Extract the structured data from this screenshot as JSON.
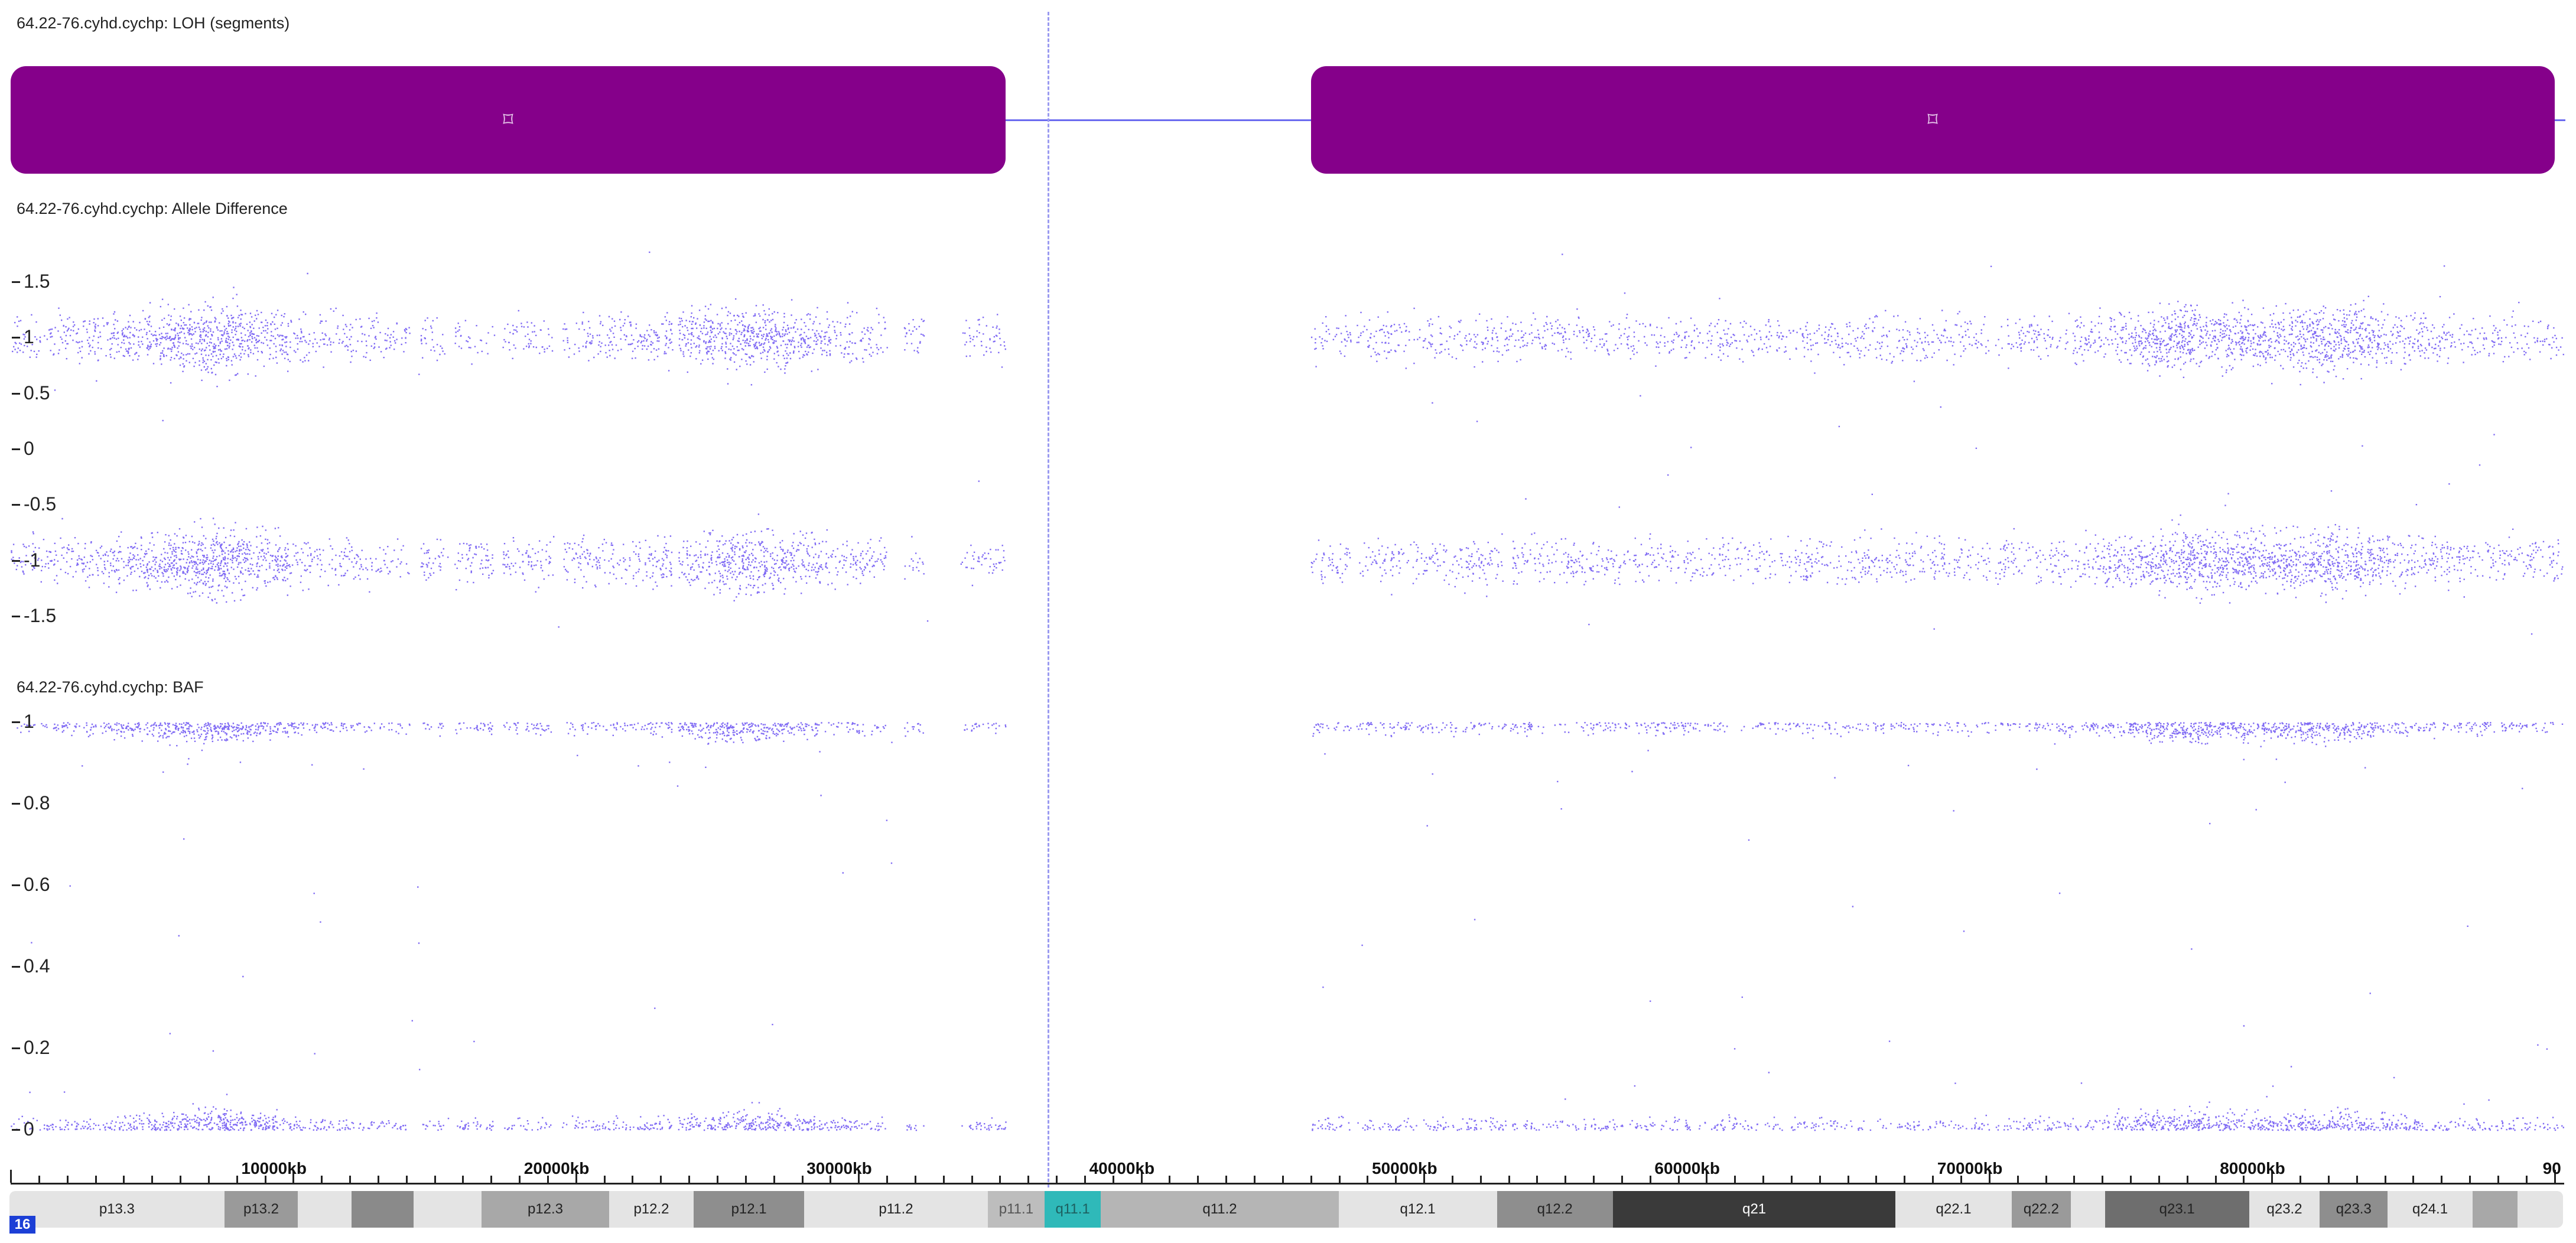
{
  "tracks": {
    "loh_label": "64.22-76.cyhd.cychp: LOH (segments)",
    "allele_label": "64.22-76.cyhd.cychp: Allele Difference",
    "baf_label": "64.22-76.cyhd.cychp: BAF"
  },
  "loh_segments": [
    {
      "start_kb": 0,
      "end_kb": 35200,
      "icon": "resize-handle-icon",
      "glyph": "⌑"
    },
    {
      "start_kb": 46000,
      "end_kb": 90000,
      "icon": "resize-handle-icon",
      "glyph": "⌑"
    }
  ],
  "cursor_kb": 36700,
  "chart_data": [
    {
      "type": "scatter",
      "title": "64.22-76.cyhd.cychp: Allele Difference",
      "ylim": [
        -1.8,
        1.8
      ],
      "y_ticks": [
        "1.5",
        "1",
        "0.5",
        "0",
        "-0.5",
        "-1",
        "-1.5"
      ],
      "x_range_kb": [
        0,
        90300
      ],
      "clusters_y": [
        1,
        -1
      ],
      "point_color": "#4a2cf0",
      "gaps_kb": [
        [
          35200,
          46000
        ]
      ]
    },
    {
      "type": "scatter",
      "title": "64.22-76.cyhd.cychp: BAF",
      "ylim": [
        0,
        1
      ],
      "y_ticks": [
        "1",
        "0.8",
        "0.6",
        "0.4",
        "0.2",
        "0"
      ],
      "x_range_kb": [
        0,
        90300
      ],
      "clusters_y": [
        1,
        0
      ],
      "point_color": "#4a2cf0",
      "gaps_kb": [
        [
          35200,
          46000
        ]
      ]
    }
  ],
  "ruler": {
    "labels": [
      "10000kb",
      "20000kb",
      "30000kb",
      "40000kb",
      "50000kb",
      "60000kb",
      "70000kb",
      "80000kb",
      "90"
    ]
  },
  "ideogram": {
    "chromosome": "16",
    "bands": [
      {
        "name": "p13.3",
        "start_kb": 0,
        "end_kb": 7600,
        "stain": "#e4e4e4",
        "text": "#222"
      },
      {
        "name": "p13.2",
        "start_kb": 7600,
        "end_kb": 10200,
        "stain": "#9a9a9a",
        "text": "#222"
      },
      {
        "name": "",
        "start_kb": 10200,
        "end_kb": 12100,
        "stain": "#e4e4e4",
        "text": "#222"
      },
      {
        "name": "",
        "start_kb": 12100,
        "end_kb": 14300,
        "stain": "#8a8a8a",
        "text": "#222"
      },
      {
        "name": "",
        "start_kb": 14300,
        "end_kb": 16700,
        "stain": "#e4e4e4",
        "text": "#222"
      },
      {
        "name": "p12.3",
        "start_kb": 16700,
        "end_kb": 21200,
        "stain": "#a8a8a8",
        "text": "#222"
      },
      {
        "name": "p12.2",
        "start_kb": 21200,
        "end_kb": 24200,
        "stain": "#e4e4e4",
        "text": "#222"
      },
      {
        "name": "p12.1",
        "start_kb": 24200,
        "end_kb": 28100,
        "stain": "#8e8e8e",
        "text": "#222"
      },
      {
        "name": "p11.2",
        "start_kb": 28100,
        "end_kb": 34600,
        "stain": "#e4e4e4",
        "text": "#222"
      },
      {
        "name": "p11.1",
        "start_kb": 34600,
        "end_kb": 36600,
        "stain": "#bdbdbd",
        "text": "#555"
      },
      {
        "name": "q11.1",
        "start_kb": 36600,
        "end_kb": 38600,
        "stain": "#2fb9b9",
        "text": "#1d5f5f"
      },
      {
        "name": "q11.2",
        "start_kb": 38600,
        "end_kb": 47000,
        "stain": "#b5b5b5",
        "text": "#222"
      },
      {
        "name": "q12.1",
        "start_kb": 47000,
        "end_kb": 52600,
        "stain": "#e4e4e4",
        "text": "#222"
      },
      {
        "name": "q12.2",
        "start_kb": 52600,
        "end_kb": 56700,
        "stain": "#8e8e8e",
        "text": "#222"
      },
      {
        "name": "q21",
        "start_kb": 56700,
        "end_kb": 66700,
        "stain": "#3a3a3a",
        "text": "#ffffff"
      },
      {
        "name": "q22.1",
        "start_kb": 66700,
        "end_kb": 70800,
        "stain": "#e4e4e4",
        "text": "#222"
      },
      {
        "name": "q22.2",
        "start_kb": 70800,
        "end_kb": 72900,
        "stain": "#9a9a9a",
        "text": "#222"
      },
      {
        "name": "",
        "start_kb": 72900,
        "end_kb": 74100,
        "stain": "#e4e4e4",
        "text": "#222"
      },
      {
        "name": "q23.1",
        "start_kb": 74100,
        "end_kb": 79200,
        "stain": "#6e6e6e",
        "text": "#222"
      },
      {
        "name": "q23.2",
        "start_kb": 79200,
        "end_kb": 81700,
        "stain": "#e4e4e4",
        "text": "#222"
      },
      {
        "name": "q23.3",
        "start_kb": 81700,
        "end_kb": 84100,
        "stain": "#8e8e8e",
        "text": "#222"
      },
      {
        "name": "q24.1",
        "start_kb": 84100,
        "end_kb": 87100,
        "stain": "#e4e4e4",
        "text": "#222"
      },
      {
        "name": "",
        "start_kb": 87100,
        "end_kb": 88700,
        "stain": "#a8a8a8",
        "text": "#222"
      },
      {
        "name": "",
        "start_kb": 88700,
        "end_kb": 90300,
        "stain": "#e4e4e4",
        "text": "#222"
      }
    ]
  }
}
